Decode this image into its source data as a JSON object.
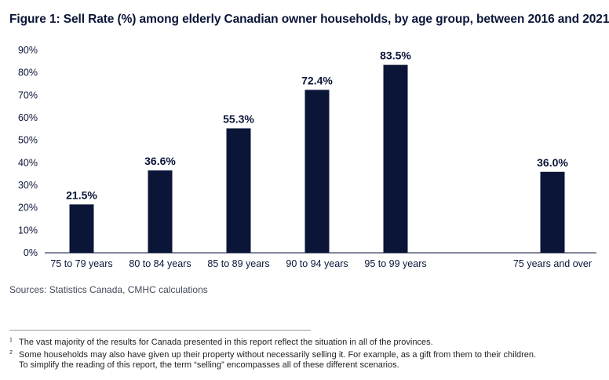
{
  "title": "Figure 1: Sell Rate (%) among elderly Canadian owner households, by age group, between 2016 and 2021",
  "sources": "Sources: Statistics Canada, CMHC calculations",
  "footnotes": [
    {
      "num": "1",
      "lines": [
        "The vast majority of the results for Canada presented in this report reflect the situation in all of the provinces."
      ]
    },
    {
      "num": "2",
      "lines": [
        "Some households may also have given up their property without necessarily selling it. For example, as a gift from them to their children.",
        "To simplify the reading of this report, the term “selling” encompasses all of these different scenarios."
      ]
    }
  ],
  "chart_data": {
    "type": "bar",
    "categories": [
      "75 to 79 years",
      "80 to 84 years",
      "85 to 89 years",
      "90 to 94 years",
      "95 to 99 years",
      "75 years and over"
    ],
    "values": [
      21.5,
      36.6,
      55.3,
      72.4,
      83.5,
      36.0
    ],
    "data_labels": [
      "21.5%",
      "36.6%",
      "55.3%",
      "72.4%",
      "83.5%",
      "36.0%"
    ],
    "y_ticks": [
      "0%",
      "10%",
      "20%",
      "30%",
      "40%",
      "50%",
      "60%",
      "70%",
      "80%",
      "90%"
    ],
    "ylim": [
      0,
      90
    ],
    "gap_before_last_category": true,
    "grid": false,
    "legend": "none",
    "bar_color": "#0b1538"
  }
}
